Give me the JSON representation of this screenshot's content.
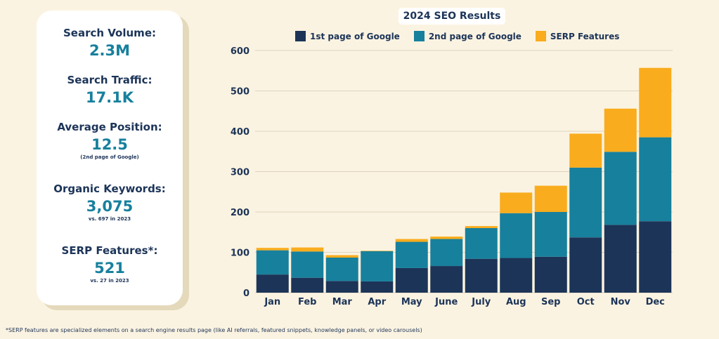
{
  "stats": {
    "search_volume": {
      "label": "Search Volume:",
      "value": "2.3M"
    },
    "search_traffic": {
      "label": "Search Traffic:",
      "value": "17.1K"
    },
    "average_position": {
      "label": "Average Position:",
      "value": "12.5",
      "note": "(2nd page of Google)"
    },
    "organic_keywords": {
      "label": "Organic Keywords:",
      "value": "3,075",
      "note": "vs. 697 in 2023"
    },
    "serp_features": {
      "label": "SERP Features*:",
      "value": "521",
      "note": "vs. 27 in 2023"
    }
  },
  "footnote": "*SERP features are specialized elements on a search engine results page (like AI referrals, featured snippets, knowledge panels, or video carousels)",
  "colors": {
    "first_page": "#1c3458",
    "second_page": "#17809d",
    "serp": "#f9ac1d"
  },
  "chart_data": {
    "type": "bar",
    "stacked": true,
    "title": "2024 SEO Results",
    "xlabel": "",
    "ylabel": "",
    "categories": [
      "Jan",
      "Feb",
      "Mar",
      "Apr",
      "May",
      "June",
      "July",
      "Aug",
      "Sep",
      "Oct",
      "Nov",
      "Dec"
    ],
    "series": [
      {
        "name": "1st page of Google",
        "color": "#1c3458",
        "values": [
          45,
          37,
          29,
          28,
          61,
          66,
          84,
          86,
          89,
          137,
          168,
          177
        ]
      },
      {
        "name": "2nd page of Google",
        "color": "#17809d",
        "values": [
          60,
          65,
          58,
          75,
          65,
          67,
          76,
          111,
          111,
          173,
          181,
          208
        ]
      },
      {
        "name": "SERP Features",
        "color": "#f9ac1d",
        "values": [
          6,
          10,
          6,
          1,
          7,
          6,
          5,
          51,
          65,
          84,
          107,
          172
        ]
      }
    ],
    "ylim": [
      0,
      600
    ],
    "yticks": [
      0,
      100,
      200,
      300,
      400,
      500,
      600
    ],
    "grid": true,
    "legend": "top"
  }
}
